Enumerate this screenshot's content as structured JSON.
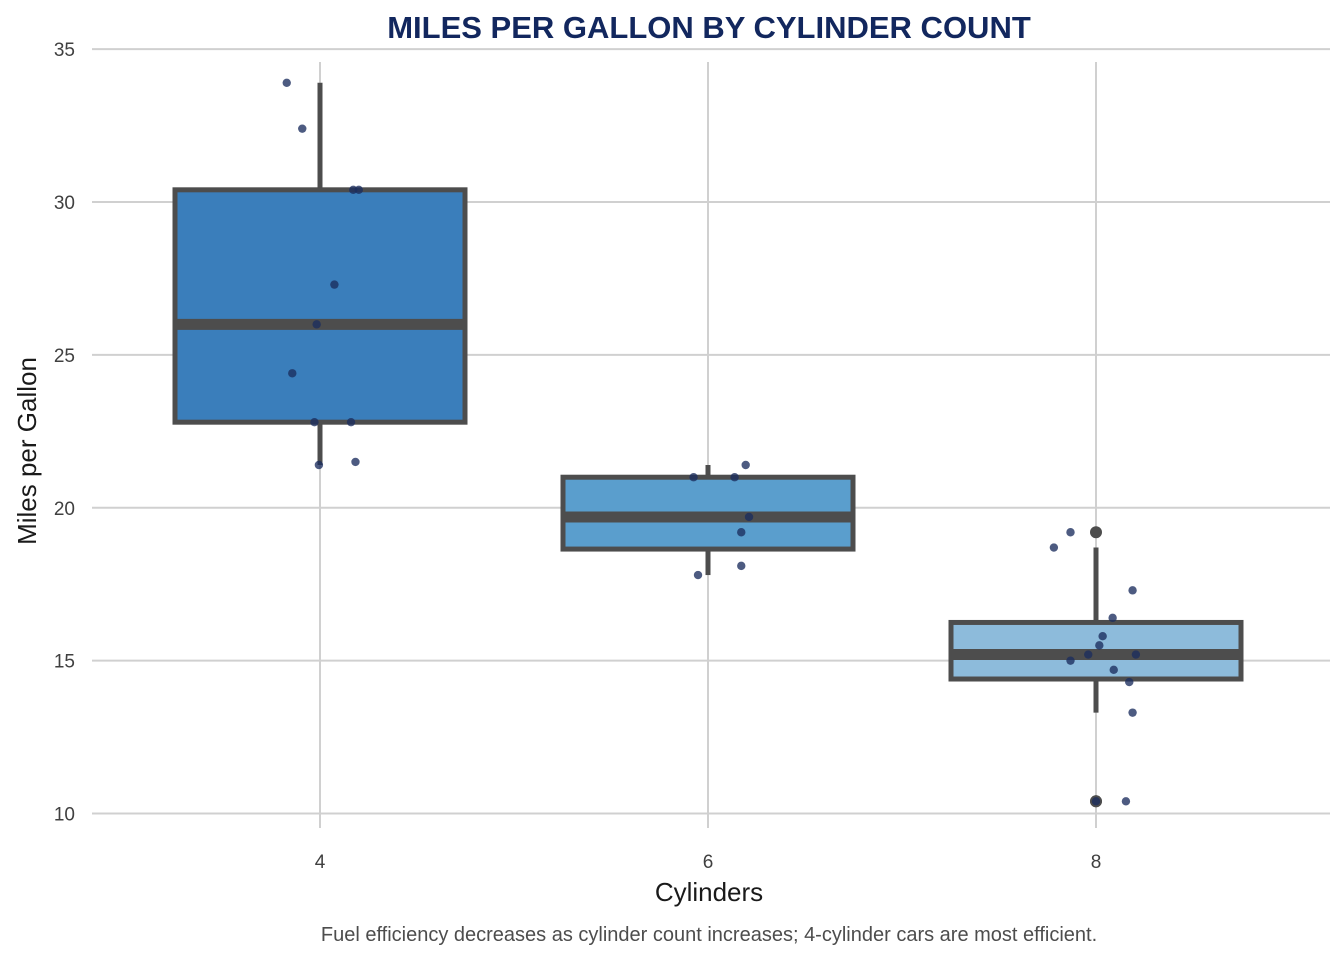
{
  "chart_data": {
    "type": "boxplot",
    "title": "MILES PER GALLON BY CYLINDER COUNT",
    "xlabel": "Cylinders",
    "ylabel": "Miles per Gallon",
    "caption": "Fuel efficiency decreases as cylinder count increases; 4-cylinder cars are most efficient.",
    "categories": [
      "4",
      "6",
      "8"
    ],
    "y_ticks": [
      10,
      15,
      20,
      25,
      30,
      35
    ],
    "ylim": [
      9.2,
      35.3
    ],
    "grid": true,
    "legend": "none",
    "colors": {
      "box_4": "#3a7ebb",
      "box_6": "#5a9ecd",
      "box_8": "#8dbbdb",
      "box_outline": "#4d4d4d",
      "points": "#1b2d5e",
      "outliers": "#4d4d4d",
      "grid": "#d0d0d0",
      "title": "#12275e"
    },
    "boxes": [
      {
        "category": "4",
        "min": 21.4,
        "q1": 22.8,
        "median": 26.0,
        "q3": 30.4,
        "max": 33.9,
        "outliers": [],
        "points": [
          {
            "jitter": -0.3,
            "y": 33.9
          },
          {
            "jitter": -0.16,
            "y": 32.4
          },
          {
            "jitter": 0.3,
            "y": 30.4
          },
          {
            "jitter": 0.35,
            "y": 30.4
          },
          {
            "jitter": 0.13,
            "y": 27.3
          },
          {
            "jitter": -0.03,
            "y": 26.0
          },
          {
            "jitter": -0.25,
            "y": 24.4
          },
          {
            "jitter": -0.05,
            "y": 22.8
          },
          {
            "jitter": 0.28,
            "y": 22.8
          },
          {
            "jitter": -0.01,
            "y": 21.4
          },
          {
            "jitter": 0.32,
            "y": 21.5
          }
        ]
      },
      {
        "category": "6",
        "min": 17.8,
        "q1": 18.65,
        "median": 19.7,
        "q3": 21.0,
        "max": 21.4,
        "outliers": [],
        "points": [
          {
            "jitter": 0.34,
            "y": 21.4
          },
          {
            "jitter": -0.13,
            "y": 21.0
          },
          {
            "jitter": 0.24,
            "y": 21.0
          },
          {
            "jitter": 0.37,
            "y": 19.7
          },
          {
            "jitter": 0.3,
            "y": 19.2
          },
          {
            "jitter": -0.09,
            "y": 17.8
          },
          {
            "jitter": 0.3,
            "y": 18.1
          }
        ]
      },
      {
        "category": "8",
        "min": 13.3,
        "q1": 14.4,
        "median": 15.2,
        "q3": 16.25,
        "max": 18.7,
        "outliers": [
          10.4,
          10.4,
          19.2
        ],
        "points": [
          {
            "jitter": -0.23,
            "y": 19.2
          },
          {
            "jitter": -0.38,
            "y": 18.7
          },
          {
            "jitter": 0.33,
            "y": 17.3
          },
          {
            "jitter": 0.15,
            "y": 16.4
          },
          {
            "jitter": 0.06,
            "y": 15.8
          },
          {
            "jitter": 0.03,
            "y": 15.5
          },
          {
            "jitter": -0.07,
            "y": 15.2
          },
          {
            "jitter": 0.36,
            "y": 15.2
          },
          {
            "jitter": -0.23,
            "y": 15.0
          },
          {
            "jitter": 0.16,
            "y": 14.7
          },
          {
            "jitter": 0.3,
            "y": 14.3
          },
          {
            "jitter": 0.33,
            "y": 13.3
          },
          {
            "jitter": 0.0,
            "y": 10.4
          },
          {
            "jitter": 0.27,
            "y": 10.4
          }
        ]
      }
    ]
  }
}
